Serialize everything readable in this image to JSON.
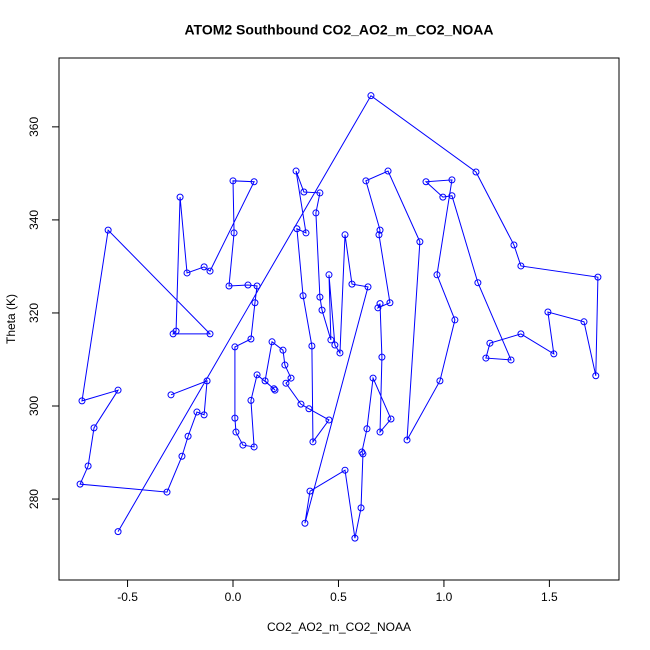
{
  "chart_data": {
    "type": "line",
    "title": "ATOM2 Southbound CO2_AO2_m_CO2_NOAA",
    "x_label": "CO2_AO2_m_CO2_NOAA",
    "y_label": "Theta (K)",
    "xlim": [
      -0.825,
      1.83
    ],
    "ylim": [
      262.6,
      374.8
    ],
    "xticks": [
      -0.5,
      0.0,
      0.5,
      1.0,
      1.5
    ],
    "yticks": [
      280,
      300,
      320,
      340,
      360
    ],
    "xtick_labels": [
      "-0.5",
      "0.0",
      "0.5",
      "1.0",
      "1.5"
    ],
    "series": [
      {
        "color": "#0000ff",
        "x": [
          -0.545,
          0.654,
          1.152,
          1.332,
          1.365,
          1.73,
          1.72,
          1.664,
          1.493,
          1.521,
          1.365,
          1.218,
          1.199,
          1.318,
          1.161,
          1.038,
          0.995,
          0.915,
          1.038,
          0.967,
          1.052,
          0.981,
          0.825,
          0.886,
          0.735,
          0.63,
          0.697,
          0.692,
          0.744,
          0.687,
          0.697,
          0.706,
          0.697,
          0.749,
          0.664,
          0.635,
          0.611,
          0.616,
          0.607,
          0.578,
          0.531,
          0.365,
          0.341,
          0.64,
          0.564,
          0.531,
          0.507,
          0.483,
          0.455,
          0.464,
          0.422,
          0.412,
          0.393,
          0.412,
          0.336,
          0.299,
          0.346,
          0.303,
          0.332,
          0.374,
          0.379,
          0.455,
          0.36,
          0.322,
          0.251,
          0.275,
          0.246,
          0.237,
          0.185,
          0.152,
          0.199,
          0.194,
          0.114,
          0.085,
          0.1,
          0.047,
          0.014,
          0.009,
          0.009,
          0.085,
          0.104,
          0.114,
          0.071,
          -0.019,
          0.005,
          0.0,
          0.1,
          -0.109,
          -0.137,
          -0.218,
          -0.251,
          -0.27,
          -0.284,
          -0.109,
          -0.592,
          -0.716,
          -0.545,
          -0.659,
          -0.687,
          -0.725,
          -0.313,
          -0.242,
          -0.213,
          -0.171,
          -0.137,
          -0.123,
          -0.294
        ],
        "values": [
          273.0,
          366.7,
          350.3,
          334.6,
          330.1,
          327.7,
          306.5,
          318.1,
          320.2,
          311.2,
          315.5,
          313.5,
          310.3,
          309.9,
          326.5,
          345.2,
          344.9,
          348.2,
          348.6,
          328.2,
          318.5,
          305.4,
          292.7,
          335.3,
          350.5,
          348.4,
          337.8,
          336.8,
          322.2,
          321.1,
          322.0,
          310.5,
          294.4,
          297.2,
          306.0,
          295.1,
          290.1,
          289.7,
          278.1,
          271.6,
          286.2,
          281.7,
          274.8,
          325.6,
          326.2,
          336.8,
          311.4,
          313.1,
          328.2,
          314.2,
          320.6,
          323.4,
          341.5,
          345.8,
          346.0,
          350.5,
          337.2,
          338.1,
          323.7,
          312.9,
          292.3,
          297.0,
          299.4,
          300.4,
          304.9,
          306.0,
          308.8,
          312.0,
          313.8,
          305.4,
          303.4,
          303.7,
          306.7,
          301.2,
          291.2,
          291.6,
          294.4,
          297.4,
          312.7,
          314.4,
          322.2,
          325.8,
          326.0,
          325.8,
          337.2,
          348.4,
          348.2,
          329.0,
          329.9,
          328.6,
          344.9,
          316.1,
          315.5,
          315.5,
          337.8,
          301.1,
          303.4,
          295.3,
          287.1,
          283.2,
          281.5,
          289.2,
          293.5,
          298.7,
          298.1,
          305.4,
          302.4
        ]
      }
    ]
  }
}
